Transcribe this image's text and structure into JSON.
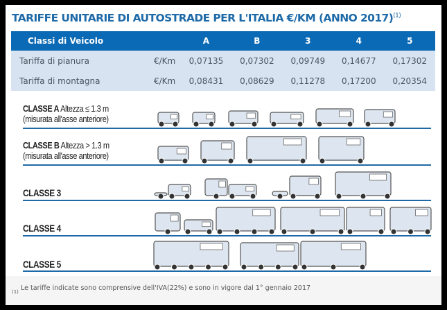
{
  "title": "TARIFFE UNITARIE DI AUTOSTRADE PER L'ITALIA €/KM (ANNO 2017)",
  "title_note": "(1)",
  "table": {
    "headers": [
      "Classi di Veicolo",
      "",
      "A",
      "B",
      "3",
      "4",
      "5"
    ],
    "rows": [
      {
        "label": "Tariffa di pianura",
        "unit": "€/Km",
        "values": [
          "0,07135",
          "0,07302",
          "0,09749",
          "0,14677",
          "0,17302"
        ]
      },
      {
        "label": "Tariffa di montagna",
        "unit": "€/Km",
        "values": [
          "0,08431",
          "0,08629",
          "0,11278",
          "0,17200",
          "0,20354"
        ]
      }
    ]
  },
  "classes": [
    {
      "name": "CLASSE A",
      "desc": "Altezza ≤ 1.3 m",
      "note": "(misurata all'asse anteriore)"
    },
    {
      "name": "CLASSE B",
      "desc": "Altezza > 1.3 m",
      "note": "(misurata all'asse anteriore)"
    },
    {
      "name": "CLASSE 3",
      "desc": "",
      "note": ""
    },
    {
      "name": "CLASSE 4",
      "desc": "",
      "note": ""
    },
    {
      "name": "CLASSE 5",
      "desc": "",
      "note": ""
    }
  ],
  "footnote": {
    "marker": "(1)",
    "text": "Le tariffe indicate sono comprensive dell'IVA(22%) e sono in vigore dal 1° gennaio 2017"
  },
  "colors": {
    "accent": "#0b6ab5",
    "row_bg": "#d7e3f1",
    "title": "#1e6aa8",
    "vehicle": "#dde6f0"
  }
}
